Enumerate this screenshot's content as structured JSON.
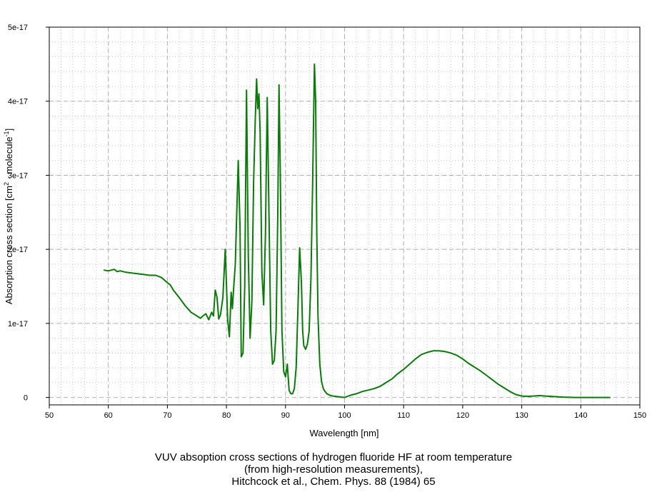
{
  "chart_data": {
    "type": "line",
    "title": "",
    "xlabel": "Wavelength [nm]",
    "ylabel": "Absorption cross section [cm",
    "ylabel_sup1": "2",
    "ylabel_mid": " · molecule",
    "ylabel_sup2": "-1",
    "ylabel_end": "]",
    "xlim": [
      50,
      150
    ],
    "ylim": [
      -1e-18,
      5e-17
    ],
    "x_ticks": [
      50,
      60,
      70,
      80,
      90,
      100,
      110,
      120,
      130,
      140,
      150
    ],
    "x_tick_labels": [
      "50",
      "60",
      "70",
      "80",
      "90",
      "100",
      "110",
      "120",
      "130",
      "140",
      "150"
    ],
    "y_ticks": [
      0,
      1e-17,
      2e-17,
      3e-17,
      4e-17,
      5e-17
    ],
    "y_tick_labels": [
      "0",
      "1e-17",
      "2e-17",
      "3e-17",
      "4e-17",
      "5e-17"
    ],
    "grid": true,
    "legend": "none",
    "series": [
      {
        "color": "#0a7a0a",
        "x": [
          59.2,
          60.0,
          61.0,
          61.5,
          62.0,
          63.0,
          64.0,
          65.0,
          66.0,
          67.0,
          68.0,
          69.0,
          70.0,
          70.5,
          71.0,
          72.0,
          73.0,
          74.0,
          75.0,
          75.6,
          76.0,
          76.5,
          77.0,
          77.5,
          77.8,
          78.1,
          78.4,
          78.7,
          79.0,
          79.4,
          79.8,
          80.2,
          80.5,
          80.8,
          81.0,
          81.2,
          81.5,
          82.0,
          82.3,
          82.5,
          82.8,
          83.1,
          83.4,
          83.7,
          84.0,
          84.3,
          84.6,
          84.9,
          85.1,
          85.3,
          85.5,
          85.7,
          86.0,
          86.3,
          86.6,
          86.9,
          87.2,
          87.5,
          87.8,
          88.1,
          88.4,
          88.7,
          88.9,
          89.1,
          89.4,
          89.7,
          90.0,
          90.3,
          90.6,
          90.9,
          91.2,
          91.5,
          91.8,
          92.1,
          92.4,
          92.7,
          92.9,
          93.1,
          93.4,
          93.7,
          94.0,
          94.3,
          94.6,
          94.9,
          95.1,
          95.3,
          95.5,
          95.8,
          96.1,
          96.4,
          96.7,
          97.0,
          97.5,
          98.0,
          99.0,
          100.0,
          101.0,
          102.0,
          103.0,
          104.0,
          105.0,
          106.0,
          107.0,
          108.0,
          109.0,
          110.0,
          111.0,
          112.0,
          113.0,
          114.0,
          115.0,
          116.0,
          117.0,
          118.0,
          119.0,
          120.0,
          121.0,
          122.0,
          123.0,
          124.0,
          125.0,
          126.0,
          127.0,
          128.0,
          129.0,
          130.0,
          131.0,
          132.0,
          133.0,
          134.0,
          135.0,
          136.0,
          137.0,
          138.0,
          139.0,
          140.0,
          141.0,
          142.0,
          143.0,
          144.0,
          145.0
        ],
        "y": [
          1.72e-17,
          1.71e-17,
          1.73e-17,
          1.7e-17,
          1.71e-17,
          1.69e-17,
          1.68e-17,
          1.67e-17,
          1.66e-17,
          1.65e-17,
          1.65e-17,
          1.62e-17,
          1.55e-17,
          1.52e-17,
          1.45e-17,
          1.35e-17,
          1.24e-17,
          1.15e-17,
          1.1e-17,
          1.07e-17,
          1.1e-17,
          1.13e-17,
          1.05e-17,
          1.15e-17,
          1.1e-17,
          1.45e-17,
          1.35e-17,
          1.06e-17,
          1.12e-17,
          1.35e-17,
          2e-17,
          1.05e-17,
          8.2e-18,
          1.42e-17,
          1.2e-17,
          1.45e-17,
          1.8e-17,
          3.2e-17,
          2.3e-17,
          5.5e-18,
          6e-18,
          1.5e-17,
          4.15e-17,
          1.9e-17,
          8e-18,
          1.3e-17,
          2.9e-17,
          3.8e-17,
          4.3e-17,
          3.9e-17,
          4.1e-17,
          3.6e-17,
          1.7e-17,
          1.25e-17,
          2.2e-17,
          4.05e-17,
          2.5e-17,
          9e-18,
          4.5e-18,
          5e-18,
          9e-18,
          2.5e-17,
          4.22e-17,
          3.1e-17,
          9e-18,
          3.5e-18,
          2.8e-18,
          4.5e-18,
          1e-18,
          5e-19,
          5e-19,
          1.2e-18,
          4e-18,
          1.2e-17,
          2.02e-17,
          1.55e-17,
          9e-18,
          7e-18,
          6.5e-18,
          7.2e-18,
          9e-18,
          1.6e-17,
          2.9e-17,
          4.5e-17,
          4e-17,
          2.2e-17,
          1.1e-17,
          4.5e-18,
          2.2e-18,
          1.2e-18,
          8e-19,
          5e-19,
          3e-19,
          2e-19,
          1e-19,
          0.0,
          3e-19,
          5e-19,
          8e-19,
          1e-18,
          1.2e-18,
          1.5e-18,
          2e-18,
          2.5e-18,
          3.2e-18,
          3.8e-18,
          4.5e-18,
          5.2e-18,
          5.8e-18,
          6.1e-18,
          6.3e-18,
          6.3e-18,
          6.2e-18,
          6e-18,
          5.7e-18,
          5.2e-18,
          4.6e-18,
          4.1e-18,
          3.6e-18,
          3e-18,
          2.4e-18,
          1.8e-18,
          1.3e-18,
          8e-19,
          4e-19,
          2e-19,
          1.5e-19,
          2e-19,
          2.5e-19,
          2e-19,
          1.5e-19,
          1e-19,
          5e-20,
          2e-20,
          0.0,
          0.0,
          0.0,
          0.0,
          0.0,
          0.0,
          0.0
        ]
      }
    ]
  },
  "caption": {
    "line1": "VUV absoption cross sections of hydrogen fluoride HF at room temperature",
    "line2": "(from high-resolution measurements),",
    "line3": "Hitchcock et al., Chem. Phys. 88 (1984) 65"
  }
}
